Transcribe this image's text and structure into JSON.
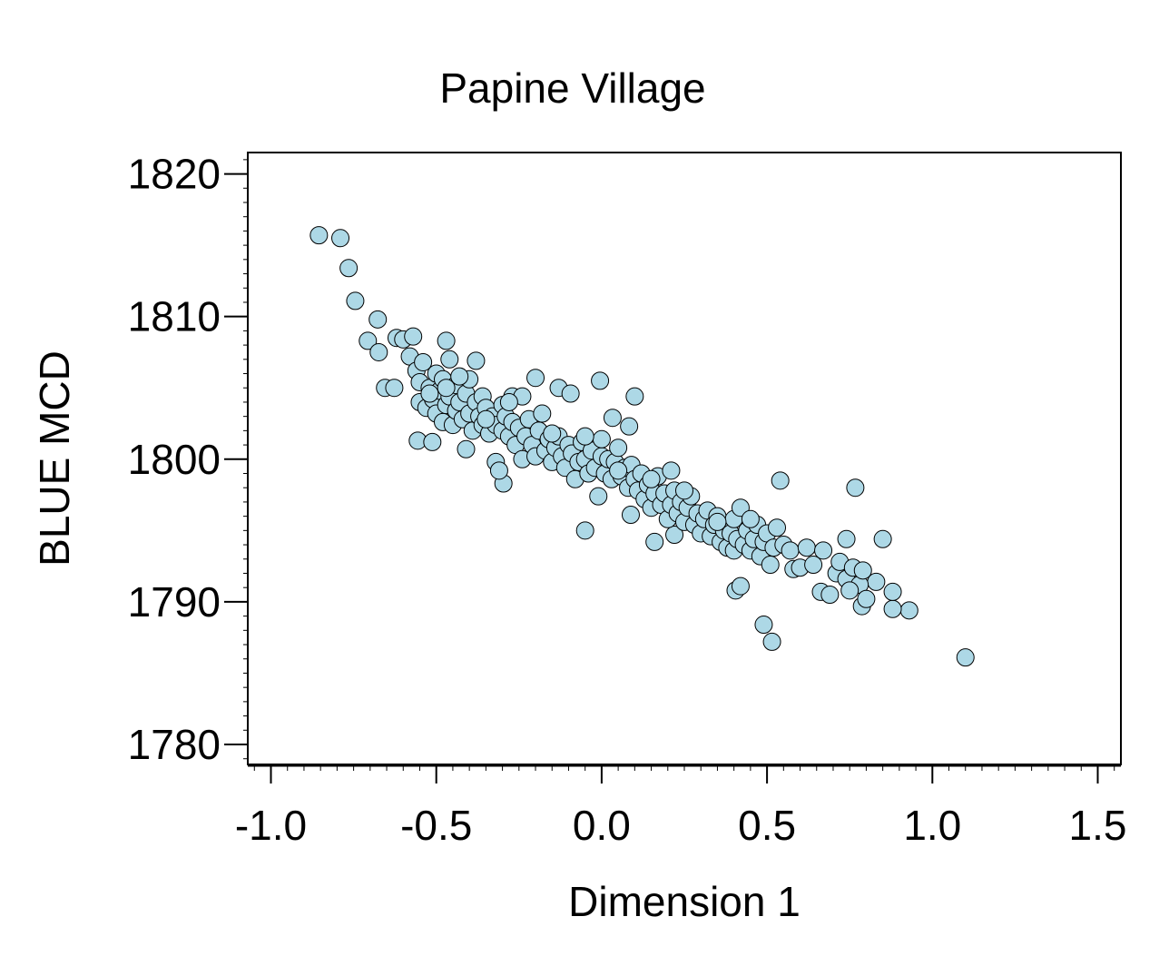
{
  "chart_data": {
    "type": "scatter",
    "title": "Papine Village",
    "xlabel": "Dimension 1",
    "ylabel": "BLUE MCD",
    "xlim": [
      -1.07,
      1.57
    ],
    "ylim": [
      1778.6,
      1821.5
    ],
    "xticks": [
      -1.0,
      -0.5,
      0.0,
      0.5,
      1.0,
      1.5
    ],
    "xtick_labels": [
      "-1.0",
      "-0.5",
      "0.0",
      "0.5",
      "1.0",
      "1.5"
    ],
    "yticks": [
      1780,
      1790,
      1800,
      1810,
      1820
    ],
    "ytick_labels": [
      "1780",
      "1790",
      "1800",
      "1810",
      "1820"
    ],
    "grid": false,
    "marker_color": "#add8e6",
    "marker_edge": "#000000",
    "points": [
      [
        -0.855,
        1815.7
      ],
      [
        -0.79,
        1815.5
      ],
      [
        -0.765,
        1813.4
      ],
      [
        -0.745,
        1811.1
      ],
      [
        -0.677,
        1809.8
      ],
      [
        -0.707,
        1808.3
      ],
      [
        -0.674,
        1807.5
      ],
      [
        -0.62,
        1808.5
      ],
      [
        -0.6,
        1808.4
      ],
      [
        -0.655,
        1805.0
      ],
      [
        -0.627,
        1805.0
      ],
      [
        -0.556,
        1801.3
      ],
      [
        -0.512,
        1801.2
      ],
      [
        -0.47,
        1808.3
      ],
      [
        -0.38,
        1806.9
      ],
      [
        -0.41,
        1800.7
      ],
      [
        -0.297,
        1798.3
      ],
      [
        -0.2,
        1805.7
      ],
      [
        -0.13,
        1805.0
      ],
      [
        -0.094,
        1804.6
      ],
      [
        -0.005,
        1805.5
      ],
      [
        0.1,
        1804.4
      ],
      [
        0.033,
        1802.9
      ],
      [
        0.083,
        1802.3
      ],
      [
        -0.05,
        1795.0
      ],
      [
        0.088,
        1796.1
      ],
      [
        0.16,
        1794.2
      ],
      [
        0.22,
        1794.7
      ],
      [
        0.54,
        1798.5
      ],
      [
        0.767,
        1798.0
      ],
      [
        0.74,
        1794.4
      ],
      [
        0.85,
        1794.4
      ],
      [
        0.405,
        1790.8
      ],
      [
        0.42,
        1791.1
      ],
      [
        0.49,
        1788.4
      ],
      [
        0.515,
        1787.2
      ],
      [
        1.1,
        1786.1
      ],
      [
        0.93,
        1789.4
      ],
      [
        0.88,
        1789.5
      ],
      [
        0.88,
        1790.7
      ],
      [
        0.787,
        1789.7
      ],
      [
        0.663,
        1790.7
      ],
      [
        0.69,
        1790.5
      ],
      [
        0.58,
        1792.3
      ],
      [
        0.83,
        1791.4
      ],
      [
        -0.57,
        1808.6
      ],
      [
        -0.58,
        1807.2
      ],
      [
        -0.56,
        1806.2
      ],
      [
        -0.55,
        1804.0
      ],
      [
        -0.55,
        1805.4
      ],
      [
        -0.54,
        1806.8
      ],
      [
        -0.53,
        1803.6
      ],
      [
        -0.52,
        1805.0
      ],
      [
        -0.51,
        1804.2
      ],
      [
        -0.5,
        1806.0
      ],
      [
        -0.5,
        1803.2
      ],
      [
        -0.49,
        1804.8
      ],
      [
        -0.48,
        1802.6
      ],
      [
        -0.48,
        1805.6
      ],
      [
        -0.47,
        1803.8
      ],
      [
        -0.46,
        1804.4
      ],
      [
        -0.46,
        1807.0
      ],
      [
        -0.45,
        1802.4
      ],
      [
        -0.44,
        1803.4
      ],
      [
        -0.44,
        1805.2
      ],
      [
        -0.43,
        1804.0
      ],
      [
        -0.42,
        1802.8
      ],
      [
        -0.41,
        1804.6
      ],
      [
        -0.4,
        1803.2
      ],
      [
        -0.4,
        1805.6
      ],
      [
        -0.39,
        1802.0
      ],
      [
        -0.38,
        1804.0
      ],
      [
        -0.37,
        1803.0
      ],
      [
        -0.36,
        1802.4
      ],
      [
        -0.36,
        1804.4
      ],
      [
        -0.35,
        1803.6
      ],
      [
        -0.34,
        1801.8
      ],
      [
        -0.33,
        1803.0
      ],
      [
        -0.32,
        1802.4
      ],
      [
        -0.32,
        1799.8
      ],
      [
        -0.31,
        1799.2
      ],
      [
        -0.3,
        1803.8
      ],
      [
        -0.3,
        1802.0
      ],
      [
        -0.29,
        1803.0
      ],
      [
        -0.28,
        1801.6
      ],
      [
        -0.27,
        1804.4
      ],
      [
        -0.27,
        1802.6
      ],
      [
        -0.26,
        1801.0
      ],
      [
        -0.25,
        1802.2
      ],
      [
        -0.24,
        1800.0
      ],
      [
        -0.24,
        1804.4
      ],
      [
        -0.23,
        1801.6
      ],
      [
        -0.22,
        1802.8
      ],
      [
        -0.21,
        1801.0
      ],
      [
        -0.2,
        1800.2
      ],
      [
        -0.19,
        1802.0
      ],
      [
        -0.18,
        1803.2
      ],
      [
        -0.17,
        1800.6
      ],
      [
        -0.16,
        1801.4
      ],
      [
        -0.15,
        1799.8
      ],
      [
        -0.14,
        1800.8
      ],
      [
        -0.13,
        1801.6
      ],
      [
        -0.12,
        1800.2
      ],
      [
        -0.11,
        1799.4
      ],
      [
        -0.1,
        1801.0
      ],
      [
        -0.09,
        1800.4
      ],
      [
        -0.08,
        1798.6
      ],
      [
        -0.07,
        1799.8
      ],
      [
        -0.06,
        1801.2
      ],
      [
        -0.05,
        1800.0
      ],
      [
        -0.04,
        1799.0
      ],
      [
        -0.03,
        1800.6
      ],
      [
        -0.02,
        1799.4
      ],
      [
        -0.01,
        1797.4
      ],
      [
        0.0,
        1800.2
      ],
      [
        0.0,
        1801.4
      ],
      [
        0.01,
        1799.0
      ],
      [
        0.02,
        1800.0
      ],
      [
        0.03,
        1798.6
      ],
      [
        0.04,
        1799.8
      ],
      [
        0.05,
        1800.8
      ],
      [
        0.06,
        1798.8
      ],
      [
        0.07,
        1799.4
      ],
      [
        0.08,
        1798.0
      ],
      [
        0.09,
        1799.6
      ],
      [
        0.1,
        1798.6
      ],
      [
        0.11,
        1797.8
      ],
      [
        0.12,
        1799.0
      ],
      [
        0.13,
        1797.2
      ],
      [
        0.14,
        1798.2
      ],
      [
        0.15,
        1796.6
      ],
      [
        0.16,
        1797.6
      ],
      [
        0.17,
        1798.8
      ],
      [
        0.18,
        1796.8
      ],
      [
        0.19,
        1797.6
      ],
      [
        0.2,
        1795.8
      ],
      [
        0.21,
        1796.8
      ],
      [
        0.21,
        1799.2
      ],
      [
        0.22,
        1797.8
      ],
      [
        0.23,
        1796.2
      ],
      [
        0.24,
        1797.0
      ],
      [
        0.25,
        1795.6
      ],
      [
        0.26,
        1796.6
      ],
      [
        0.27,
        1797.4
      ],
      [
        0.28,
        1795.4
      ],
      [
        0.29,
        1796.2
      ],
      [
        0.3,
        1794.8
      ],
      [
        0.31,
        1795.8
      ],
      [
        0.32,
        1796.4
      ],
      [
        0.33,
        1794.6
      ],
      [
        0.34,
        1795.4
      ],
      [
        0.35,
        1796.0
      ],
      [
        0.36,
        1794.2
      ],
      [
        0.37,
        1795.0
      ],
      [
        0.38,
        1793.8
      ],
      [
        0.39,
        1794.8
      ],
      [
        0.4,
        1795.8
      ],
      [
        0.4,
        1793.6
      ],
      [
        0.41,
        1794.4
      ],
      [
        0.42,
        1796.6
      ],
      [
        0.43,
        1794.0
      ],
      [
        0.44,
        1795.0
      ],
      [
        0.45,
        1793.6
      ],
      [
        0.46,
        1794.4
      ],
      [
        0.47,
        1795.4
      ],
      [
        0.48,
        1793.2
      ],
      [
        0.49,
        1794.2
      ],
      [
        0.5,
        1794.8
      ],
      [
        0.51,
        1792.6
      ],
      [
        0.52,
        1793.8
      ],
      [
        0.53,
        1795.2
      ],
      [
        0.55,
        1794.0
      ],
      [
        0.57,
        1793.6
      ],
      [
        0.6,
        1792.4
      ],
      [
        0.62,
        1793.8
      ],
      [
        0.64,
        1792.6
      ],
      [
        0.67,
        1793.6
      ],
      [
        0.71,
        1792.0
      ],
      [
        0.72,
        1792.8
      ],
      [
        0.74,
        1791.6
      ],
      [
        0.76,
        1792.4
      ],
      [
        0.78,
        1791.2
      ],
      [
        0.79,
        1792.2
      ],
      [
        0.8,
        1790.2
      ],
      [
        0.75,
        1790.8
      ],
      [
        -0.52,
        1804.6
      ],
      [
        -0.47,
        1805.0
      ],
      [
        -0.43,
        1805.8
      ],
      [
        -0.35,
        1802.8
      ],
      [
        -0.28,
        1804.0
      ],
      [
        -0.15,
        1801.8
      ],
      [
        -0.05,
        1801.6
      ],
      [
        0.05,
        1799.2
      ],
      [
        0.15,
        1798.6
      ],
      [
        0.25,
        1797.8
      ],
      [
        0.35,
        1795.6
      ],
      [
        0.45,
        1795.8
      ]
    ]
  }
}
